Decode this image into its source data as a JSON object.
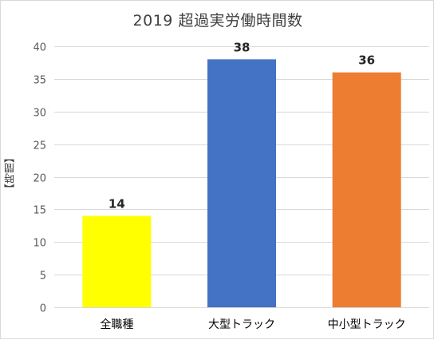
{
  "chart_data": {
    "type": "bar",
    "title": "2019 超過実労働時間数",
    "ylabel": "【時間】",
    "xlabel": "",
    "categories": [
      "全職種",
      "大型トラック",
      "中小型トラック"
    ],
    "values": [
      14,
      38,
      36
    ],
    "data_labels": [
      "14",
      "38",
      "36"
    ],
    "colors": [
      "#FFFF00",
      "#4472C4",
      "#ED7D31"
    ],
    "ylim": [
      0,
      40
    ],
    "yticks": [
      0,
      5,
      10,
      15,
      20,
      25,
      30,
      35,
      40
    ],
    "grid": true,
    "legend": "none"
  }
}
